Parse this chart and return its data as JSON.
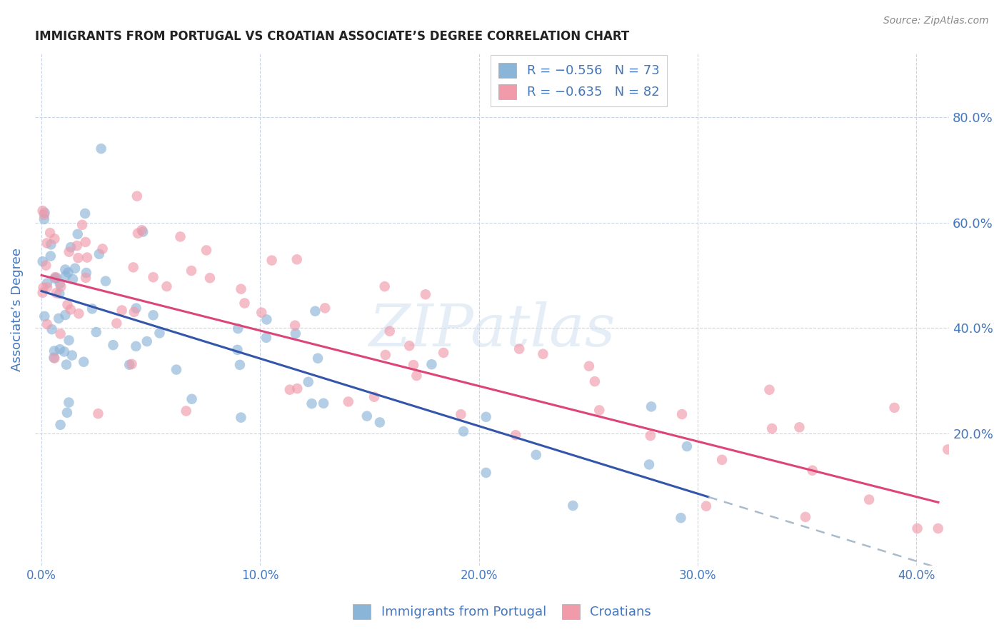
{
  "title": "IMMIGRANTS FROM PORTUGAL VS CROATIAN ASSOCIATE’S DEGREE CORRELATION CHART",
  "source": "Source: ZipAtlas.com",
  "ylabel": "Associate’s Degree",
  "x_tick_labels": [
    "0.0%",
    "10.0%",
    "20.0%",
    "30.0%",
    "40.0%"
  ],
  "x_tick_values": [
    0.0,
    10.0,
    20.0,
    30.0,
    40.0
  ],
  "y_tick_labels": [
    "20.0%",
    "40.0%",
    "60.0%",
    "80.0%"
  ],
  "y_tick_values": [
    20.0,
    40.0,
    60.0,
    80.0
  ],
  "xlim": [
    -0.3,
    41.5
  ],
  "ylim": [
    -5.0,
    92.0
  ],
  "legend_label_portugal": "Immigrants from Portugal",
  "legend_label_croatian": "Croatians",
  "point_color_portugal": "#8ab4d8",
  "point_color_croatian": "#f09aaa",
  "line_color_portugal": "#3355aa",
  "line_color_croatian": "#dd4477",
  "line_color_dashed": "#aabbcc",
  "background_color": "#ffffff",
  "grid_color": "#c8d4e8",
  "title_color": "#222222",
  "axis_label_color": "#4477bb",
  "tick_label_color": "#4477bb",
  "source_color": "#888888",
  "portugal_intercept": 47.0,
  "portugal_slope": -1.28,
  "croatian_intercept": 50.0,
  "croatian_slope": -1.05,
  "portugal_line_xend": 30.5,
  "dash_xend": 41.0,
  "croatian_line_xend": 41.0,
  "watermark_text": "ZIPatlas",
  "watermark_color": "#d0dff0",
  "watermark_fontsize": 60,
  "seed_portugal": 7,
  "seed_croatian": 99
}
